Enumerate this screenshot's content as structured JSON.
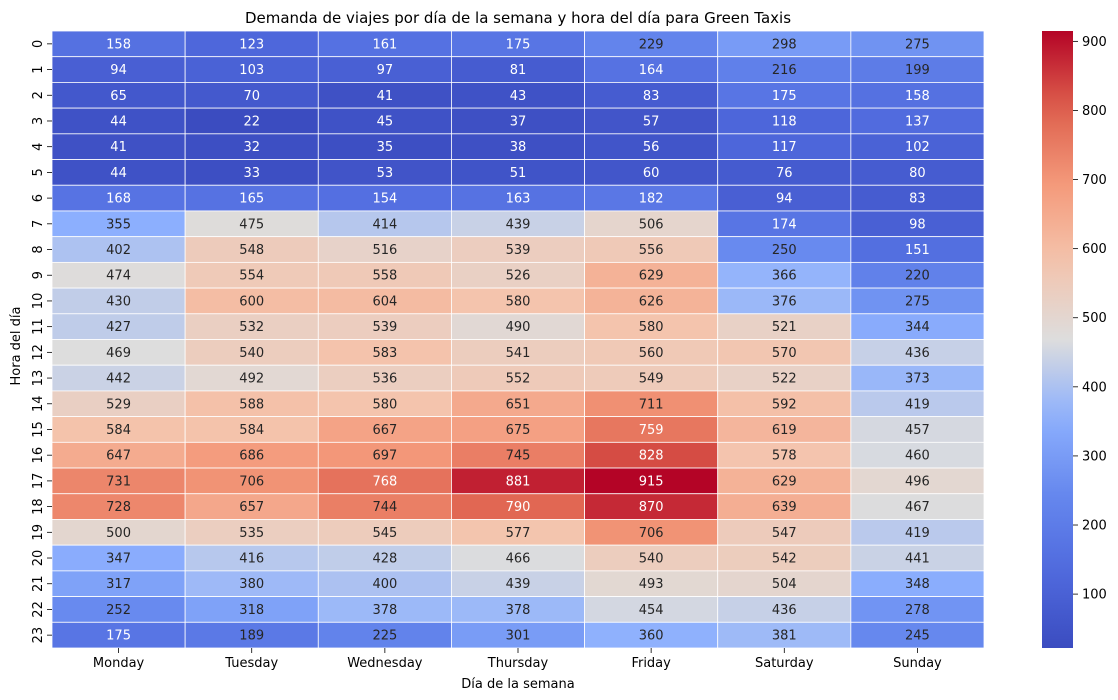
{
  "chart_data": {
    "type": "heatmap",
    "title": "Demanda  de viajes por día de la semana y hora del día para Green Taxis",
    "xlabel": "Día de la semana",
    "ylabel": "Hora del día",
    "x_categories": [
      "Monday",
      "Tuesday",
      "Wednesday",
      "Thursday",
      "Friday",
      "Saturday",
      "Sunday"
    ],
    "y_categories": [
      "0",
      "1",
      "2",
      "3",
      "4",
      "5",
      "6",
      "7",
      "8",
      "9",
      "10",
      "11",
      "12",
      "13",
      "14",
      "15",
      "16",
      "17",
      "18",
      "19",
      "20",
      "21",
      "22",
      "23"
    ],
    "values": [
      [
        158,
        123,
        161,
        175,
        229,
        298,
        275
      ],
      [
        94,
        103,
        97,
        81,
        164,
        216,
        199
      ],
      [
        65,
        70,
        41,
        43,
        83,
        175,
        158
      ],
      [
        44,
        22,
        45,
        37,
        57,
        118,
        137
      ],
      [
        41,
        32,
        35,
        38,
        56,
        117,
        102
      ],
      [
        44,
        33,
        53,
        51,
        60,
        76,
        80
      ],
      [
        168,
        165,
        154,
        163,
        182,
        94,
        83
      ],
      [
        355,
        475,
        414,
        439,
        506,
        174,
        98
      ],
      [
        402,
        548,
        516,
        539,
        556,
        250,
        151
      ],
      [
        474,
        554,
        558,
        526,
        629,
        366,
        220
      ],
      [
        430,
        600,
        604,
        580,
        626,
        376,
        275
      ],
      [
        427,
        532,
        539,
        490,
        580,
        521,
        344
      ],
      [
        469,
        540,
        583,
        541,
        560,
        570,
        436
      ],
      [
        442,
        492,
        536,
        552,
        549,
        522,
        373
      ],
      [
        529,
        588,
        580,
        651,
        711,
        592,
        419
      ],
      [
        584,
        584,
        667,
        675,
        759,
        619,
        457
      ],
      [
        647,
        686,
        697,
        745,
        828,
        578,
        460
      ],
      [
        731,
        706,
        768,
        881,
        915,
        629,
        496
      ],
      [
        728,
        657,
        744,
        790,
        870,
        639,
        467
      ],
      [
        500,
        535,
        545,
        577,
        706,
        547,
        419
      ],
      [
        347,
        416,
        428,
        466,
        540,
        542,
        441
      ],
      [
        317,
        380,
        400,
        439,
        493,
        504,
        348
      ],
      [
        252,
        318,
        378,
        378,
        454,
        436,
        278
      ],
      [
        175,
        189,
        225,
        301,
        360,
        381,
        245
      ]
    ],
    "colormap": "coolwarm",
    "vmin": 22,
    "vmax": 915,
    "colorbar_ticks": [
      "100",
      "200",
      "300",
      "400",
      "500",
      "600",
      "700",
      "800",
      "900"
    ],
    "annotations": true,
    "grid_lines_color": "#ffffff"
  }
}
